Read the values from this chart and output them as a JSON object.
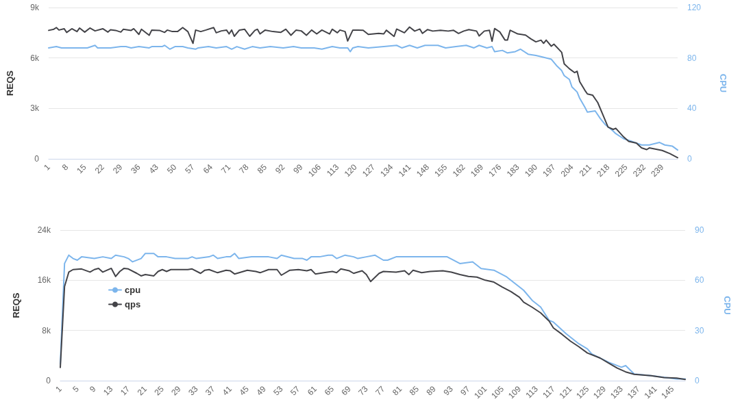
{
  "chart_data": [
    {
      "type": "line",
      "ylabel": "REQS",
      "y2label": "CPU",
      "grid": "y",
      "legend": false,
      "xlim": [
        1,
        245
      ],
      "xticks": [
        1,
        8,
        15,
        22,
        29,
        36,
        43,
        50,
        57,
        64,
        71,
        78,
        85,
        92,
        99,
        106,
        113,
        120,
        127,
        134,
        141,
        148,
        155,
        162,
        169,
        176,
        183,
        190,
        197,
        204,
        211,
        218,
        225,
        232,
        239
      ],
      "ylim": [
        0,
        9000
      ],
      "yticks": [
        0,
        {
          "value": 3000,
          "label": "3k"
        },
        {
          "value": 6000,
          "label": "6k"
        },
        {
          "value": 9000,
          "label": "9k"
        }
      ],
      "y2lim": [
        0,
        120
      ],
      "y2ticks": [
        0,
        40,
        80,
        120
      ],
      "series": [
        {
          "color": "#7cb5ec",
          "axis": "y2",
          "x": [
            1,
            4,
            6,
            11,
            16,
            19,
            20,
            25,
            29,
            31,
            33,
            36,
            40,
            41,
            45,
            46,
            48,
            50,
            53,
            55,
            58,
            59,
            63,
            66,
            70,
            72,
            74,
            77,
            80,
            83,
            87,
            92,
            96,
            99,
            104,
            107,
            111,
            114,
            117,
            118,
            119,
            121,
            125,
            131,
            136,
            138,
            141,
            144,
            147,
            152,
            155,
            159,
            163,
            166,
            168,
            171,
            173,
            174,
            177,
            179,
            182,
            184,
            187,
            190,
            192,
            196,
            198,
            200,
            201,
            203,
            204,
            206,
            207,
            209,
            210,
            213,
            215,
            217,
            220,
            221,
            224,
            227,
            231,
            234,
            238,
            240,
            243,
            245
          ],
          "values": [
            88,
            89,
            88,
            88,
            88,
            90,
            88,
            88,
            89,
            89,
            88,
            89,
            88,
            89,
            89,
            90,
            87,
            89,
            89,
            88,
            87,
            88,
            89,
            88,
            89,
            87,
            89,
            87,
            89,
            88,
            89,
            88,
            89,
            88,
            88,
            87,
            89,
            88,
            88,
            85,
            88,
            89,
            88,
            89,
            90,
            88,
            90,
            88,
            90,
            90,
            88,
            89,
            90,
            88,
            90,
            88,
            89,
            85,
            86,
            84,
            85,
            87,
            83,
            82,
            81,
            79,
            74,
            70,
            66,
            63,
            57,
            53,
            48,
            41,
            37,
            38,
            32,
            27,
            22,
            20,
            16,
            14,
            11,
            11,
            13,
            11,
            10,
            7
          ]
        },
        {
          "color": "#434348",
          "x": [
            1,
            3,
            4,
            5,
            7,
            8,
            10,
            12,
            13,
            15,
            17,
            19,
            22,
            24,
            25,
            27,
            29,
            30,
            33,
            34,
            36,
            37,
            40,
            41,
            44,
            46,
            47,
            49,
            51,
            53,
            55,
            57,
            58,
            60,
            62,
            65,
            66,
            68,
            70,
            71,
            72,
            73,
            75,
            77,
            79,
            81,
            82,
            83,
            85,
            88,
            91,
            93,
            95,
            97,
            99,
            101,
            103,
            105,
            107,
            110,
            111,
            113,
            114,
            116,
            117,
            119,
            121,
            123,
            125,
            129,
            131,
            132,
            135,
            136,
            139,
            141,
            143,
            145,
            146,
            148,
            150,
            153,
            156,
            158,
            160,
            162,
            164,
            167,
            168,
            170,
            172,
            173,
            174,
            176,
            178,
            179,
            180,
            183,
            186,
            188,
            190,
            192,
            193,
            194,
            196,
            197,
            200,
            201,
            203,
            205,
            206,
            207,
            209,
            210,
            212,
            214,
            216,
            218,
            220,
            221,
            224,
            226,
            229,
            231,
            233,
            234,
            239,
            242,
            245
          ],
          "values": [
            7640,
            7710,
            7810,
            7660,
            7740,
            7520,
            7740,
            7570,
            7780,
            7540,
            7780,
            7610,
            7740,
            7540,
            7680,
            7640,
            7540,
            7710,
            7640,
            7740,
            7400,
            7710,
            7350,
            7660,
            7640,
            7520,
            7660,
            7570,
            7570,
            7810,
            7570,
            6870,
            7660,
            7570,
            7660,
            7810,
            7500,
            7610,
            7660,
            7430,
            7660,
            7290,
            7660,
            7710,
            7290,
            7640,
            7710,
            7430,
            7660,
            7570,
            7520,
            7710,
            7350,
            7660,
            7610,
            7350,
            7660,
            7430,
            7660,
            7430,
            7710,
            7500,
            7660,
            7570,
            7010,
            7660,
            7660,
            7650,
            7400,
            7460,
            7430,
            7650,
            7280,
            7720,
            7500,
            7840,
            7600,
            7720,
            7460,
            7690,
            7600,
            7650,
            7600,
            7650,
            7460,
            7600,
            7690,
            7600,
            7310,
            7600,
            7650,
            6990,
            7750,
            7550,
            7070,
            7070,
            7650,
            7430,
            7360,
            7140,
            6960,
            7060,
            6870,
            7060,
            6700,
            6820,
            6340,
            5650,
            5360,
            5130,
            5210,
            4590,
            4080,
            3860,
            3790,
            3350,
            2620,
            1890,
            1750,
            1820,
            1310,
            1040,
            940,
            650,
            550,
            650,
            500,
            310,
            70
          ]
        }
      ]
    },
    {
      "type": "line",
      "ylabel": "REQS",
      "y2label": "CPU",
      "grid": "y",
      "legend": "top left",
      "xlim": [
        1,
        148
      ],
      "xticks": [
        1,
        5,
        9,
        13,
        17,
        21,
        25,
        29,
        33,
        37,
        41,
        45,
        49,
        53,
        57,
        61,
        65,
        69,
        73,
        77,
        81,
        85,
        89,
        93,
        97,
        101,
        105,
        109,
        113,
        117,
        121,
        125,
        129,
        133,
        137,
        141,
        145
      ],
      "ylim": [
        0,
        24000
      ],
      "yticks": [
        0,
        {
          "value": 8000,
          "label": "8k"
        },
        {
          "value": 16000,
          "label": "16k"
        },
        {
          "value": 24000,
          "label": "24k"
        }
      ],
      "y2lim": [
        0,
        90
      ],
      "y2ticks": [
        0,
        30,
        60,
        90
      ],
      "series": [
        {
          "name": "cpu",
          "color": "#7cb5ec",
          "axis": "y2",
          "x": [
            1,
            2,
            3,
            4,
            5,
            6,
            9,
            11,
            13,
            14,
            16,
            17,
            18,
            20,
            21,
            23,
            24,
            26,
            28,
            31,
            32,
            33,
            36,
            37,
            38,
            40,
            41,
            42,
            43,
            46,
            50,
            52,
            53,
            56,
            58,
            59,
            60,
            62,
            64,
            65,
            66,
            68,
            70,
            71,
            73,
            75,
            77,
            78,
            80,
            82,
            86,
            89,
            92,
            95,
            98,
            100,
            103,
            106,
            110,
            112,
            114,
            116,
            117,
            120,
            123,
            125,
            126,
            130,
            133,
            134,
            136,
            140,
            146,
            148
          ],
          "values": [
            10,
            70,
            75,
            73,
            72,
            74,
            73,
            74,
            73,
            75,
            74,
            73,
            71,
            73,
            76,
            76,
            74,
            74,
            73,
            73,
            74,
            73,
            74,
            75,
            73,
            74,
            74,
            76,
            73,
            74,
            74,
            73,
            75,
            73,
            73,
            72,
            74,
            74,
            75,
            75,
            73,
            75,
            74,
            73,
            74,
            75,
            72,
            72,
            74,
            74,
            74,
            74,
            74,
            70,
            71,
            67,
            66,
            62,
            54,
            48,
            44,
            36,
            35,
            28,
            22,
            19,
            16,
            11,
            8,
            9,
            4,
            3,
            1,
            1
          ]
        },
        {
          "name": "qps",
          "color": "#434348",
          "x": [
            1,
            2,
            3,
            4,
            6,
            8,
            9,
            10,
            11,
            13,
            14,
            15,
            16,
            17,
            19,
            20,
            21,
            23,
            24,
            25,
            26,
            27,
            31,
            32,
            34,
            35,
            36,
            38,
            40,
            41,
            42,
            45,
            47,
            48,
            50,
            52,
            53,
            55,
            57,
            59,
            60,
            61,
            63,
            65,
            66,
            67,
            69,
            70,
            72,
            73,
            74,
            76,
            77,
            80,
            82,
            83,
            84,
            86,
            88,
            91,
            93,
            95,
            97,
            99,
            101,
            103,
            105,
            107,
            109,
            110,
            112,
            114,
            116,
            117,
            119,
            121,
            123,
            125,
            128,
            130,
            132,
            134,
            136,
            140,
            143,
            146,
            148
          ],
          "values": [
            2100,
            15000,
            17300,
            17700,
            17800,
            17300,
            17700,
            17900,
            17300,
            17900,
            16600,
            17400,
            17900,
            17800,
            17100,
            16700,
            16900,
            16700,
            17400,
            17700,
            17400,
            17700,
            17700,
            17800,
            17100,
            17600,
            17700,
            17200,
            17600,
            17500,
            17000,
            17600,
            17400,
            17200,
            17700,
            17700,
            16800,
            17600,
            17700,
            17500,
            17700,
            17000,
            17200,
            17400,
            17200,
            17800,
            17500,
            17100,
            17500,
            16900,
            15800,
            17100,
            17400,
            17300,
            17500,
            16900,
            17600,
            17200,
            17400,
            17500,
            17300,
            16900,
            16600,
            16500,
            16000,
            15700,
            14900,
            14200,
            13300,
            12500,
            11700,
            10800,
            9500,
            8400,
            7400,
            6300,
            5400,
            4400,
            3600,
            2800,
            2000,
            1400,
            1000,
            800,
            500,
            400,
            200
          ]
        }
      ]
    }
  ]
}
